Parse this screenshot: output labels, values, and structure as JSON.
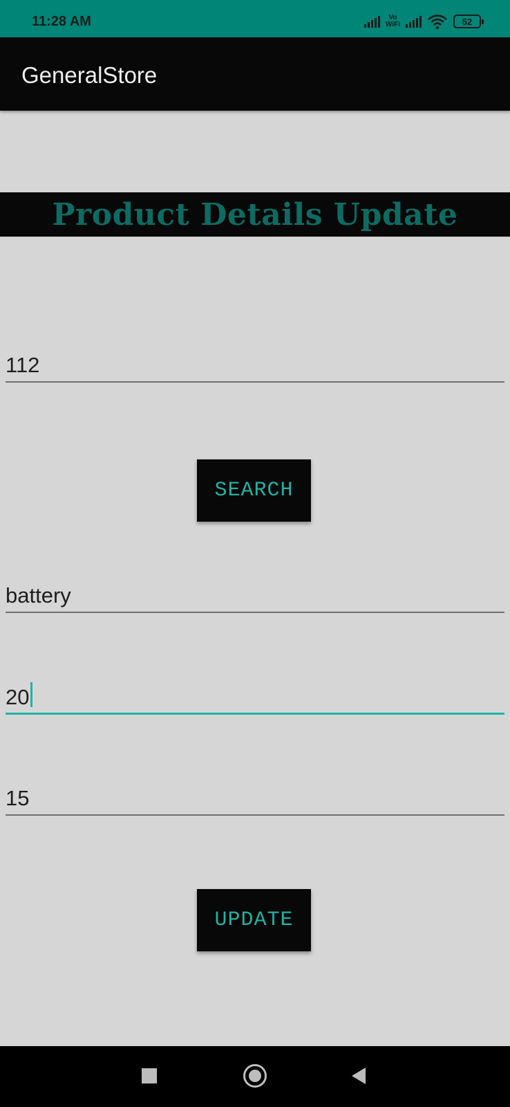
{
  "status_bar": {
    "time": "11:28 AM",
    "vowifi_line1": "Vo",
    "vowifi_line2": "WiFi",
    "battery_level": "52",
    "icons": [
      "signal-icon",
      "vowifi-icon",
      "signal-icon",
      "wifi-icon",
      "battery-icon"
    ],
    "color": "#008577"
  },
  "app_bar": {
    "title": "GeneralStore",
    "color": "#080808"
  },
  "heading": {
    "text": "Product Details Update",
    "color": "#0d6b62"
  },
  "form": {
    "product_id": {
      "value": "112"
    },
    "search_button": {
      "label": "SEARCH"
    },
    "product_name": {
      "value": "battery"
    },
    "quantity": {
      "value": "20",
      "focused": true
    },
    "price": {
      "value": "15"
    },
    "update_button": {
      "label": "UPDATE"
    },
    "accent_color": "#1fb3a4"
  },
  "nav_bar": {
    "icons": [
      "recents-square-icon",
      "home-circle-icon",
      "back-triangle-icon"
    ]
  }
}
